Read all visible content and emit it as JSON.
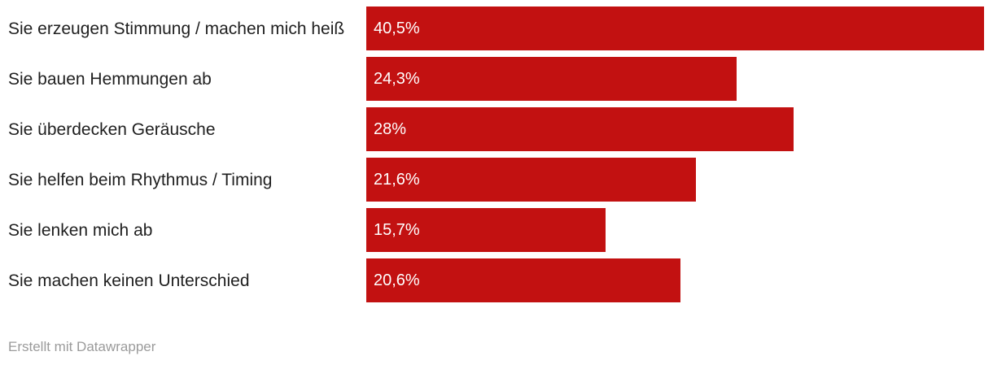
{
  "chart_data": {
    "type": "bar",
    "orientation": "horizontal",
    "categories": [
      "Sie erzeugen Stimmung / machen mich heiß",
      "Sie bauen Hemmungen ab",
      "Sie überdecken Geräusche",
      "Sie helfen beim Rhythmus / Timing",
      "Sie lenken mich ab",
      "Sie machen keinen Unterschied"
    ],
    "values": [
      40.5,
      24.3,
      28,
      21.6,
      15.7,
      20.6
    ],
    "value_labels": [
      "40,5%",
      "24,3%",
      "28%",
      "21,6%",
      "15,7%",
      "20,6%"
    ],
    "title": "",
    "xlabel": "",
    "ylabel": "",
    "xlim": [
      0,
      40.5
    ],
    "grid": false,
    "legend": "none",
    "bar_color": "#c21111",
    "value_label_color": "#ffffff",
    "category_label_color": "#1f1f1f"
  },
  "footer": {
    "attribution": "Erstellt mit Datawrapper",
    "color": "#9b9b9b"
  }
}
